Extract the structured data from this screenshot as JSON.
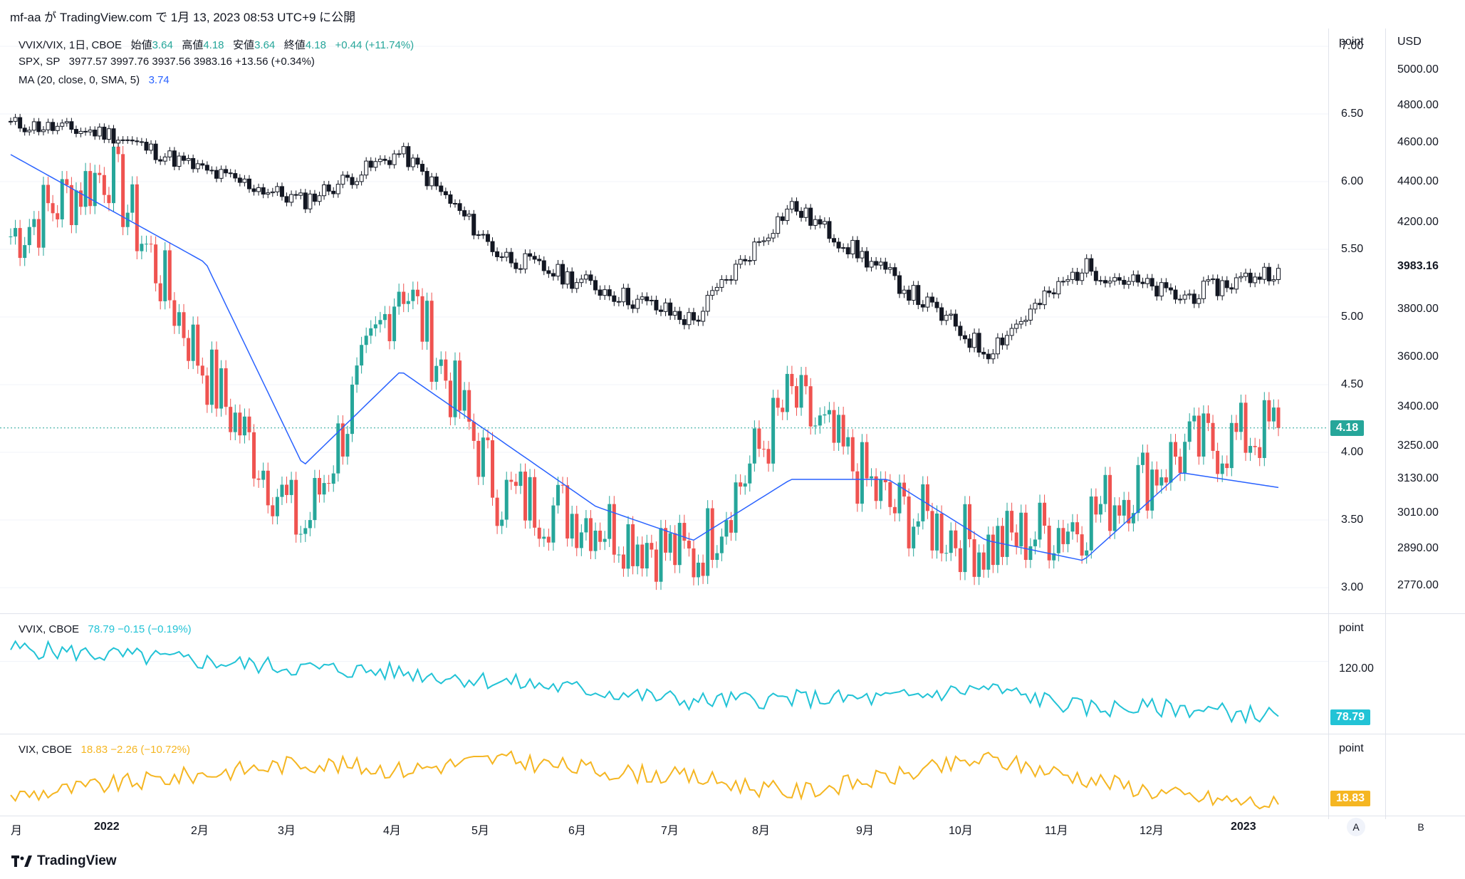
{
  "header": "mf-aa が TradingView.com で 1月 13, 2023 08:53 UTC+9 に公開",
  "legend_main": {
    "line1_prefix": "VVIX/VIX, 1日, CBOE",
    "open_label": "始値",
    "open": "3.64",
    "high_label": "高値",
    "high": "4.18",
    "low_label": "安値",
    "low": "3.64",
    "close_label": "終値",
    "close": "4.18",
    "change": "+0.44 (+11.74%)",
    "line2_prefix": "SPX, SP",
    "line2_values": "3977.57  3997.76  3937.56  3983.16  +13.56 (+0.34%)",
    "line3_prefix": "MA (20, close, 0, SMA, 5)",
    "line3_value": "3.74"
  },
  "legend_vvix": {
    "name": "VVIX, CBOE",
    "value": "78.79  −0.15 (−0.19%)"
  },
  "legend_vix": {
    "name": "VIX, CBOE",
    "value": "18.83  −2.26 (−10.72%)"
  },
  "axes": {
    "main_left_unit": "point",
    "main_right_unit": "USD",
    "main_left_ticks": [
      "7.00",
      "6.50",
      "6.00",
      "5.50",
      "5.00",
      "4.50",
      "4.00",
      "3.50",
      "3.00"
    ],
    "main_right_ticks": [
      "5000.00",
      "4800.00",
      "4600.00",
      "4400.00",
      "4200.00",
      "3800.00",
      "3600.00",
      "3400.00",
      "3250.00",
      "3130.00",
      "3010.00",
      "2890.00",
      "2770.00"
    ],
    "spx_last_label": "3983.16",
    "ratio_last_tag": "4.18",
    "vvix_unit": "point",
    "vvix_tick": "120.00",
    "vvix_last_tag": "78.79",
    "vix_unit": "point",
    "vix_last_tag": "18.83",
    "x_ticks": [
      "月",
      "2022",
      "2月",
      "3月",
      "4月",
      "5月",
      "6月",
      "7月",
      "8月",
      "9月",
      "10月",
      "11月",
      "12月",
      "2023"
    ],
    "auto_button": "A",
    "log_button": "B"
  },
  "footer": {
    "brand": "TradingView"
  },
  "colors": {
    "up": "#26a69a",
    "down": "#ef5350",
    "spx": "#131722",
    "ma": "#2962ff",
    "vvix": "#22c3d6",
    "vix": "#f5b622"
  },
  "chart_data": [
    {
      "type": "candlestick",
      "title": "VVIX/VIX, 1日, CBOE",
      "axis": "left",
      "ylim": [
        2.9,
        7.1
      ],
      "last": 4.18,
      "x": [
        "2021-12",
        "2022-01",
        "2022-02",
        "2022-03",
        "2022-04",
        "2022-05",
        "2022-06",
        "2022-07",
        "2022-08",
        "2022-09",
        "2022-10",
        "2022-11",
        "2022-12",
        "2023-01"
      ],
      "y": [
        5.6,
        6.1,
        4.6,
        3.4,
        5.3,
        3.7,
        3.5,
        3.2,
        4.4,
        3.6,
        3.3,
        3.5,
        4.0,
        4.18
      ]
    },
    {
      "type": "line",
      "title": "MA (20, close, 0, SMA, 5)",
      "axis": "left",
      "last": 3.74,
      "x": [
        "2021-12",
        "2022-01",
        "2022-02",
        "2022-03",
        "2022-04",
        "2022-05",
        "2022-06",
        "2022-07",
        "2022-08",
        "2022-09",
        "2022-10",
        "2022-11",
        "2022-12",
        "2023-01"
      ],
      "y": [
        6.2,
        5.8,
        5.4,
        3.9,
        4.6,
        4.1,
        3.6,
        3.35,
        3.8,
        3.8,
        3.35,
        3.2,
        3.85,
        3.74
      ]
    },
    {
      "type": "candlestick",
      "title": "SPX, SP",
      "axis": "right",
      "last": 3983.16,
      "x": [
        "2021-12",
        "2022-01",
        "2022-02",
        "2022-03",
        "2022-04",
        "2022-05",
        "2022-06",
        "2022-07",
        "2022-08",
        "2022-09",
        "2022-10",
        "2022-11",
        "2022-12",
        "2023-01"
      ],
      "y": [
        4700,
        4650,
        4450,
        4300,
        4550,
        4050,
        3900,
        3750,
        4280,
        3950,
        3620,
        3990,
        3850,
        3983.16
      ]
    },
    {
      "type": "line",
      "title": "VVIX, CBOE",
      "last": 78.79,
      "x": [
        "2021-12",
        "2022-01",
        "2022-02",
        "2022-03",
        "2022-04",
        "2022-05",
        "2022-06",
        "2022-07",
        "2022-08",
        "2022-09",
        "2022-10",
        "2022-11",
        "2022-12",
        "2023-01"
      ],
      "y": [
        130,
        125,
        120,
        115,
        112,
        105,
        98,
        90,
        92,
        92,
        100,
        85,
        85,
        78.79
      ]
    },
    {
      "type": "line",
      "title": "VIX, CBOE",
      "last": 18.83,
      "x": [
        "2021-12",
        "2022-01",
        "2022-02",
        "2022-03",
        "2022-04",
        "2022-05",
        "2022-06",
        "2022-07",
        "2022-08",
        "2022-09",
        "2022-10",
        "2022-11",
        "2022-12",
        "2023-01"
      ],
      "y": [
        21,
        24,
        27,
        30,
        28,
        31,
        28,
        26,
        22,
        26,
        31,
        26,
        21,
        18.83
      ]
    }
  ]
}
